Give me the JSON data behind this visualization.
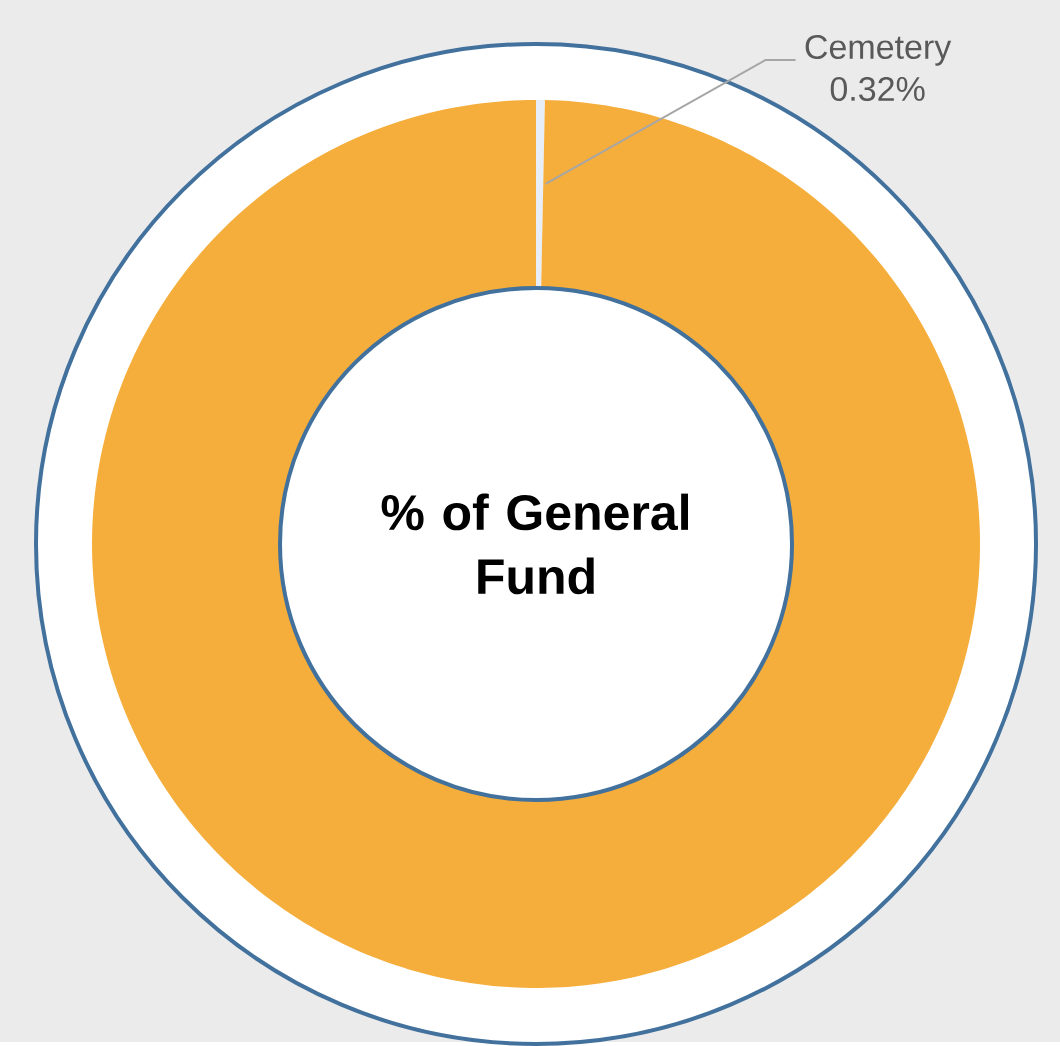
{
  "chart_data": {
    "type": "donut",
    "title": "% of General Fund",
    "categories": [
      "Cemetery",
      null
    ],
    "values": [
      0.32,
      99.68
    ],
    "colors": [
      "#e8eef7",
      "#f5ae3c"
    ],
    "value_labels": [
      "0.32%",
      null
    ]
  }
}
